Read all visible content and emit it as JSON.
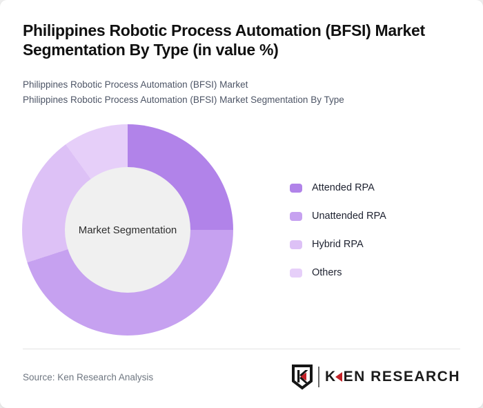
{
  "title": "Philippines Robotic Process Automation (BFSI) Market Segmentation By Type (in value %)",
  "subtitle_lines": [
    "Philippines Robotic Process Automation (BFSI) Market",
    "Philippines Robotic Process Automation (BFSI) Market Segmentation By Type"
  ],
  "chart_data": {
    "type": "pie",
    "donut": true,
    "title": "Philippines Robotic Process Automation (BFSI) Market Segmentation By Type (in value %)",
    "center_label": "Market Segmentation",
    "categories": [
      "Attended RPA",
      "Unattended RPA",
      "Hybrid RPA",
      "Others"
    ],
    "values": [
      25,
      45,
      20,
      10
    ],
    "unit": "value %",
    "colors": [
      "#b183e9",
      "#c6a1f0",
      "#ddc1f6",
      "#e6cff9"
    ],
    "hole_color": "#f0f0f0",
    "legend_position": "right",
    "start_angle_deg": 0
  },
  "legend_note": "legend swatch colors mirror chart_data.colors",
  "footer": {
    "source": "Source: Ken Research Analysis",
    "logo": {
      "emblem_letter": "K",
      "wordmark_first_letter": "K",
      "wordmark_rest": "EN RESEARCH",
      "accent_color": "#c42127"
    }
  }
}
